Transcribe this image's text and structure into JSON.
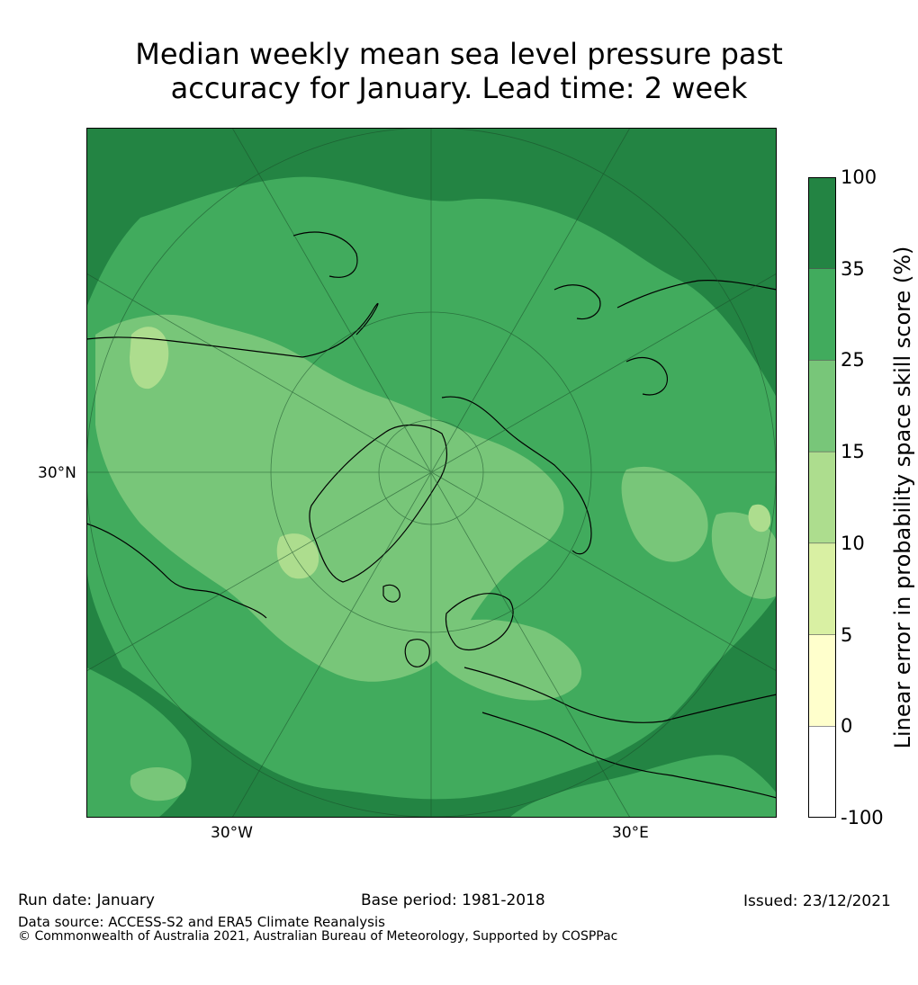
{
  "title": {
    "line1": "Median weekly mean sea level pressure past",
    "line2": "accuracy for January. Lead time: 2 week"
  },
  "axis_labels": {
    "lat_30n": "30°N",
    "lon_30w": "30°W",
    "lon_30e": "30°E"
  },
  "colorbar": {
    "label": "Linear error in probability space skill score (%)",
    "ticks": [
      "100",
      "35",
      "25",
      "15",
      "10",
      "5",
      "0",
      "-100"
    ],
    "bins": [
      {
        "from": 35,
        "to": 100,
        "color": "#238443"
      },
      {
        "from": 25,
        "to": 35,
        "color": "#41ab5d"
      },
      {
        "from": 15,
        "to": 25,
        "color": "#78c679"
      },
      {
        "from": 10,
        "to": 15,
        "color": "#addd8e"
      },
      {
        "from": 5,
        "to": 10,
        "color": "#d9f0a3"
      },
      {
        "from": 0,
        "to": 5,
        "color": "#ffffcc"
      },
      {
        "from": -100,
        "to": 0,
        "color": "#ffffff"
      }
    ]
  },
  "footer": {
    "run_date": "Run date: January",
    "base_period": "Base period: 1981-2018",
    "issued": "Issued: 23/12/2021",
    "data_source": "Data source: ACCESS-S2 and ERA5 Climate Reanalysis",
    "copyright": "© Commonwealth of Australia 2021, Australian Bureau of Meteorology, Supported by COSPPac"
  }
}
